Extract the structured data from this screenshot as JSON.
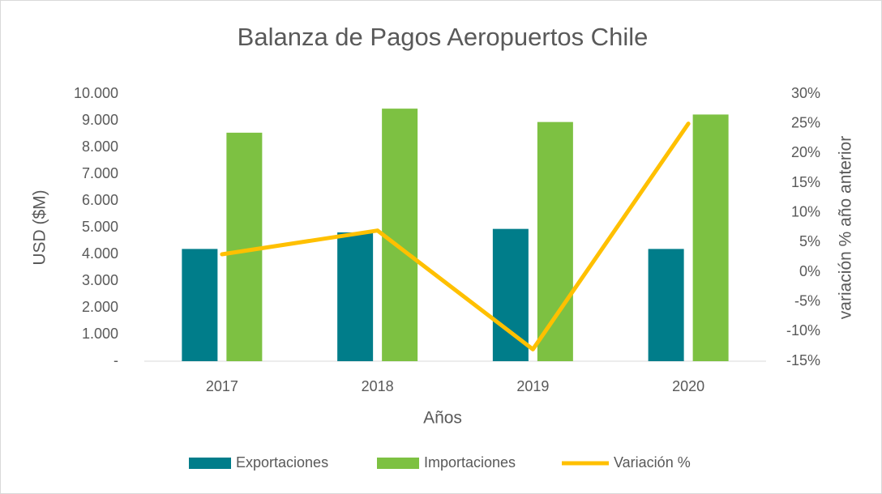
{
  "chart_data": {
    "type": "bar_line",
    "title": "Balanza de Pagos Aeropuertos Chile",
    "x_label": "Años",
    "y_label": "USD ($M)",
    "y2_label": "variación % año anterior",
    "categories": [
      "2017",
      "2018",
      "2019",
      "2020"
    ],
    "series": [
      {
        "name": "Exportaciones",
        "type": "bar",
        "color": "#007d8a",
        "values": [
          4200,
          4820,
          4950,
          4200
        ]
      },
      {
        "name": "Importaciones",
        "type": "bar",
        "color": "#7dc142",
        "values": [
          8550,
          9450,
          8950,
          9230
        ]
      },
      {
        "name": "Variación %",
        "type": "line",
        "axis": "y2",
        "color": "#ffc000",
        "values": [
          3,
          7,
          -13,
          25
        ]
      }
    ],
    "ylim": [
      0,
      10000
    ],
    "yticks": [
      {
        "value": 0,
        "label": "-"
      },
      {
        "value": 1000,
        "label": "1.000"
      },
      {
        "value": 2000,
        "label": "2.000"
      },
      {
        "value": 3000,
        "label": "3.000"
      },
      {
        "value": 4000,
        "label": "4.000"
      },
      {
        "value": 5000,
        "label": "5.000"
      },
      {
        "value": 6000,
        "label": "6.000"
      },
      {
        "value": 7000,
        "label": "7.000"
      },
      {
        "value": 8000,
        "label": "8.000"
      },
      {
        "value": 9000,
        "label": "9.000"
      },
      {
        "value": 10000,
        "label": "10.000"
      }
    ],
    "y2lim": [
      -15,
      30
    ],
    "y2ticks": [
      {
        "value": -15,
        "label": "-15%"
      },
      {
        "value": -10,
        "label": "-10%"
      },
      {
        "value": -5,
        "label": "-5%"
      },
      {
        "value": 0,
        "label": "0%"
      },
      {
        "value": 5,
        "label": "5%"
      },
      {
        "value": 10,
        "label": "10%"
      },
      {
        "value": 15,
        "label": "15%"
      },
      {
        "value": 20,
        "label": "20%"
      },
      {
        "value": 25,
        "label": "25%"
      },
      {
        "value": 30,
        "label": "30%"
      }
    ],
    "grid": false,
    "legend": "bottom"
  }
}
